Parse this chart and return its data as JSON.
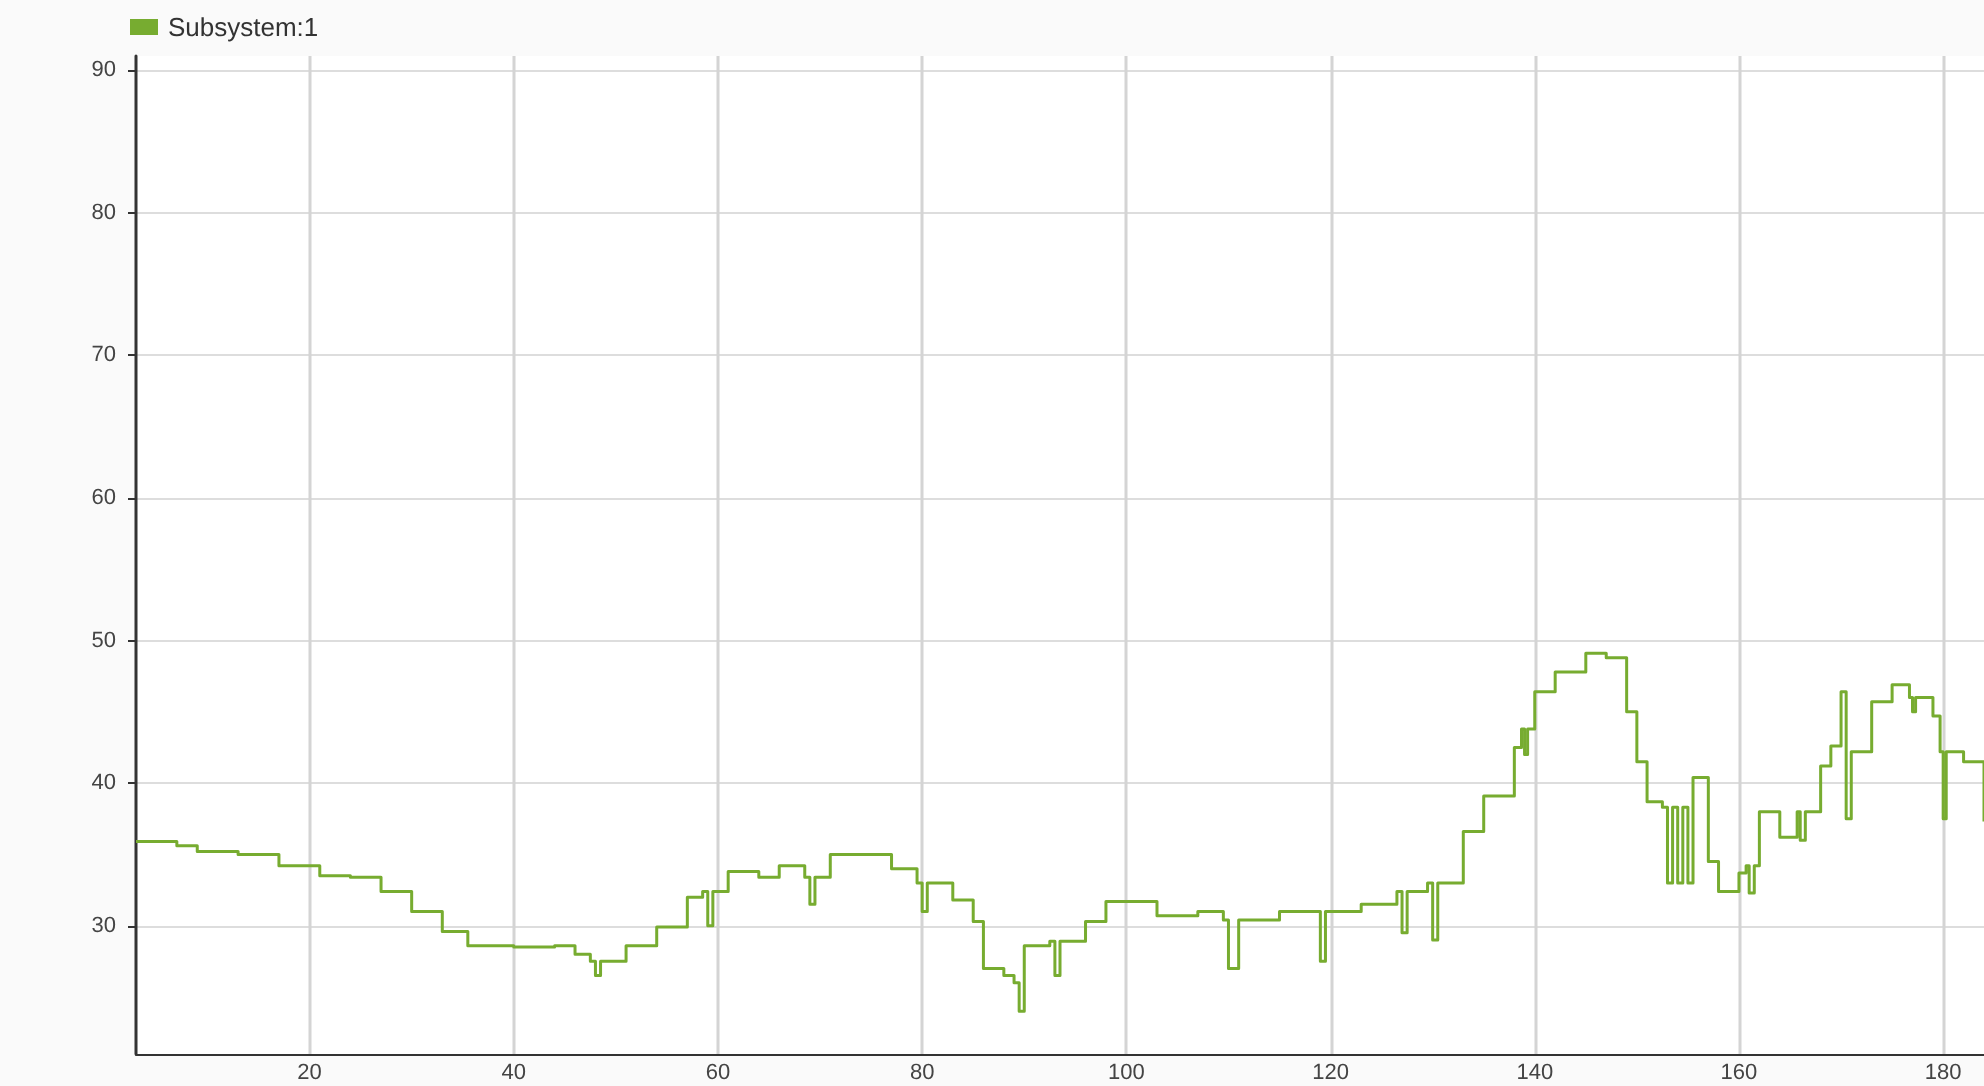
{
  "chart_data": {
    "type": "step",
    "xlim": [
      3,
      184
    ],
    "ylim": [
      21,
      91
    ],
    "xticks": [
      20,
      40,
      60,
      80,
      100,
      120,
      140,
      160,
      180
    ],
    "yticks": [
      30,
      40,
      50,
      60,
      70,
      80,
      90
    ],
    "grid": true,
    "legend": "top left",
    "marker": "none",
    "line_style": "solid",
    "series": [
      {
        "name": "Subsystem:1",
        "color": "#77ac30",
        "x": [
          3,
          7,
          9,
          13,
          17,
          21,
          24,
          27,
          30,
          33,
          35.5,
          40,
          44,
          46,
          47.5,
          48,
          48.5,
          51,
          54,
          57,
          58.5,
          59,
          59.5,
          61,
          64,
          66,
          68.5,
          69,
          69.5,
          71,
          74,
          77,
          79.5,
          80,
          80.5,
          83,
          85,
          86,
          88,
          89,
          89.5,
          90,
          92.5,
          93,
          93.5,
          96,
          98,
          101,
          103,
          107,
          109.5,
          110,
          111,
          115,
          118.5,
          119,
          119.5,
          123,
          126.5,
          127,
          127.5,
          129.5,
          130,
          130.5,
          133,
          135,
          138,
          138.7,
          139,
          139.3,
          140,
          142,
          145,
          147,
          149,
          150,
          151,
          152.5,
          153,
          153.5,
          154,
          154.5,
          155,
          155.5,
          157,
          158,
          160,
          160.7,
          161,
          161.5,
          162,
          164,
          165.7,
          166,
          166.5,
          168,
          169,
          170,
          170.5,
          171,
          173,
          175,
          176.7,
          177,
          177.3,
          179,
          179.7,
          180,
          180.3,
          182,
          184
        ],
        "values": [
          35.9,
          35.6,
          35.2,
          35,
          34.2,
          33.5,
          33.4,
          32.4,
          31,
          29.6,
          28.6,
          28.5,
          28.6,
          28,
          27.5,
          26.5,
          27.5,
          28.6,
          29.9,
          32,
          32.4,
          30,
          32.4,
          33.8,
          33.4,
          34.2,
          33.4,
          31.5,
          33.4,
          35,
          35,
          34,
          33,
          31,
          33,
          31.8,
          30.3,
          27,
          26.5,
          26,
          24,
          28.6,
          28.9,
          26.5,
          28.9,
          30.3,
          31.7,
          31.7,
          30.7,
          31,
          30.4,
          27,
          30.4,
          31,
          31,
          27.5,
          31,
          31.5,
          32.4,
          29.5,
          32.4,
          33,
          29,
          33,
          36.6,
          39.1,
          42.5,
          43.8,
          42,
          43.8,
          46.4,
          47.8,
          49.1,
          48.8,
          45,
          41.5,
          38.7,
          38.3,
          33,
          38.3,
          33,
          38.3,
          33,
          40.4,
          34.5,
          32.4,
          33.7,
          34.2,
          32.3,
          34.2,
          38,
          36.2,
          38,
          36,
          38,
          41.2,
          42.6,
          46.4,
          37.5,
          42.2,
          45.7,
          46.9,
          46,
          45,
          46,
          44.7,
          42.2,
          37.5,
          42.2,
          41.5,
          37.3
        ]
      }
    ]
  }
}
